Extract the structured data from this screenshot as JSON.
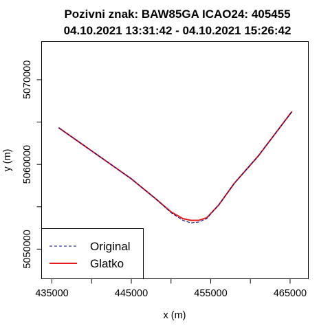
{
  "chart_data": {
    "type": "line",
    "title": "Pozivni znak: BAW85GA  ICAO24: 405455",
    "subtitle": "04.10.2021 13:31:42 - 04.10.2021 15:26:42",
    "xlabel": "x (m)",
    "ylabel": "y (m)",
    "xlim": [
      433700,
      467300
    ],
    "ylim": [
      5046500,
      5074500
    ],
    "x_ticks": [
      435000,
      440000,
      445000,
      450000,
      455000,
      460000,
      465000
    ],
    "x_tick_labels": [
      "435000",
      "",
      "445000",
      "",
      "455000",
      "",
      "465000"
    ],
    "y_ticks": [
      5045000,
      5050000,
      5055000,
      5060000,
      5065000,
      5070000
    ],
    "y_tick_labels": [
      "",
      "5050000",
      "",
      "5060000",
      "",
      "5070000"
    ],
    "grid": false,
    "legend_position": "bottom-left",
    "series": [
      {
        "name": "Original",
        "style": "dashed",
        "color": "#00008b",
        "x": [
          435900,
          440000,
          445000,
          448000,
          450000,
          451500,
          452500,
          453500,
          454500,
          456000,
          458000,
          461000,
          465200
        ],
        "y": [
          5064300,
          5061600,
          5058300,
          5056000,
          5054300,
          5053400,
          5053100,
          5053200,
          5053600,
          5055200,
          5057800,
          5061000,
          5066200
        ]
      },
      {
        "name": "Glatko",
        "style": "solid",
        "color": "#e41a1c",
        "x": [
          435900,
          440000,
          445000,
          448000,
          450000,
          451500,
          452500,
          453500,
          454500,
          456000,
          458000,
          461000,
          465200
        ],
        "y": [
          5064300,
          5061600,
          5058300,
          5056000,
          5054400,
          5053600,
          5053400,
          5053400,
          5053700,
          5055200,
          5057800,
          5061000,
          5066200
        ]
      }
    ]
  }
}
